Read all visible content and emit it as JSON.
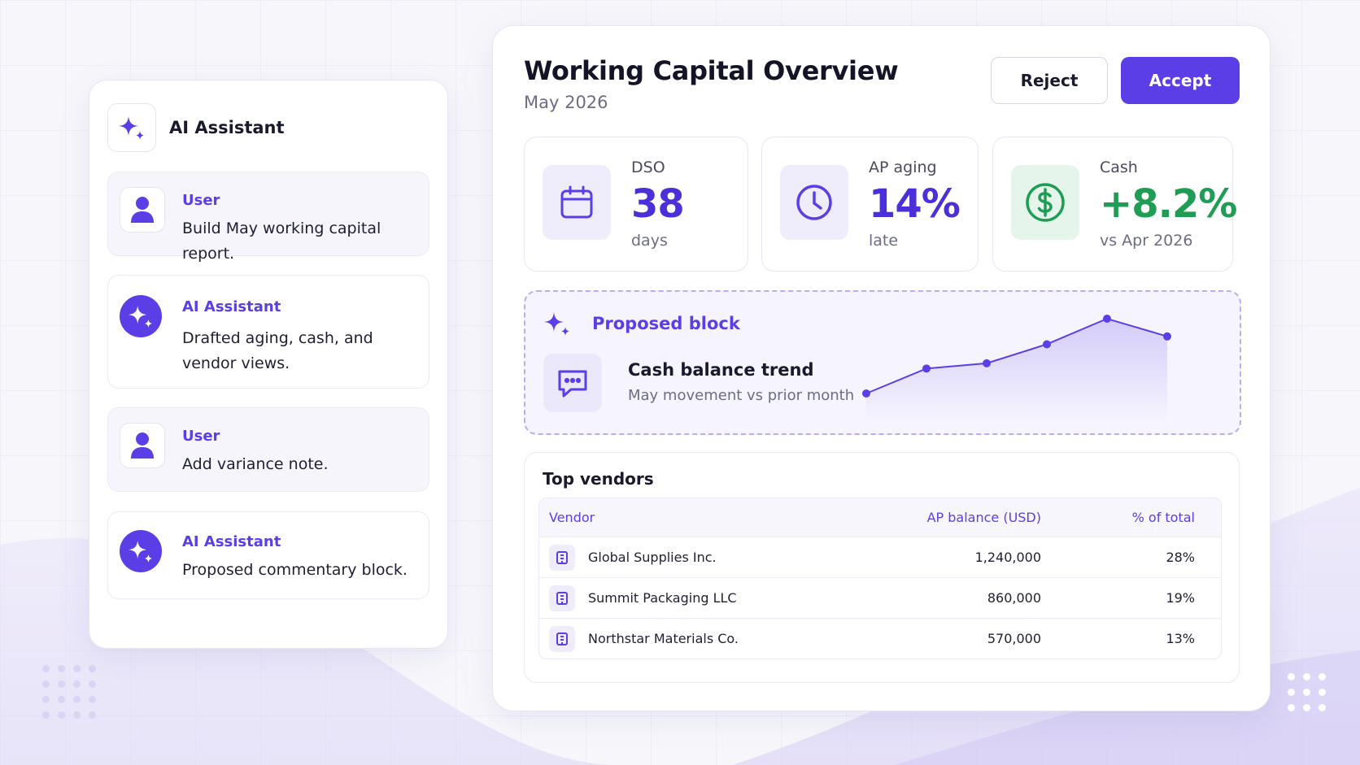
{
  "assistant": {
    "title": "AI Assistant",
    "messages": [
      {
        "role": "user",
        "author": "User",
        "text": "Build May working capital report."
      },
      {
        "role": "ai",
        "author": "AI Assistant",
        "text": "Drafted aging, cash, and vendor views."
      },
      {
        "role": "user",
        "author": "User",
        "text": "Add variance note."
      },
      {
        "role": "ai",
        "author": "AI Assistant",
        "text": "Proposed commentary block."
      }
    ]
  },
  "overview": {
    "title": "Working Capital Overview",
    "period": "May 2026",
    "reject_label": "Reject",
    "accept_label": "Accept"
  },
  "kpis": [
    {
      "label": "DSO",
      "value": "38",
      "unit": "days",
      "icon": "calendar-icon",
      "color": "#4b2fd9"
    },
    {
      "label": "AP aging",
      "value": "14%",
      "unit": "late",
      "icon": "clock-icon",
      "color": "#4b2fd9"
    },
    {
      "label": "Cash",
      "value": "+8.2%",
      "unit": "vs Apr 2026",
      "icon": "dollar-icon",
      "color": "#1f9d55"
    }
  ],
  "proposed_block": {
    "label": "Proposed block",
    "title": "Cash balance trend",
    "subtitle": "May movement vs prior month",
    "icon": "message-icon"
  },
  "chart_data": {
    "type": "line",
    "values": [
      0,
      0.38,
      0.46,
      0.75,
      1.14,
      0.87
    ],
    "title": "Cash balance trend",
    "grid": false,
    "color": "#5b3ee6"
  },
  "vendors": {
    "title": "Top vendors",
    "columns": [
      "Vendor",
      "AP balance (USD)",
      "% of total"
    ],
    "rows": [
      {
        "vendor": "Global Supplies Inc.",
        "balance": "1,240,000",
        "share": "28%"
      },
      {
        "vendor": "Summit Packaging LLC",
        "balance": "860,000",
        "share": "19%"
      },
      {
        "vendor": "Northstar Materials Co.",
        "balance": "570,000",
        "share": "13%"
      }
    ]
  },
  "colors": {
    "accent": "#5b3ee6",
    "positive": "#1f9d55",
    "background": "#f7f7fb"
  }
}
